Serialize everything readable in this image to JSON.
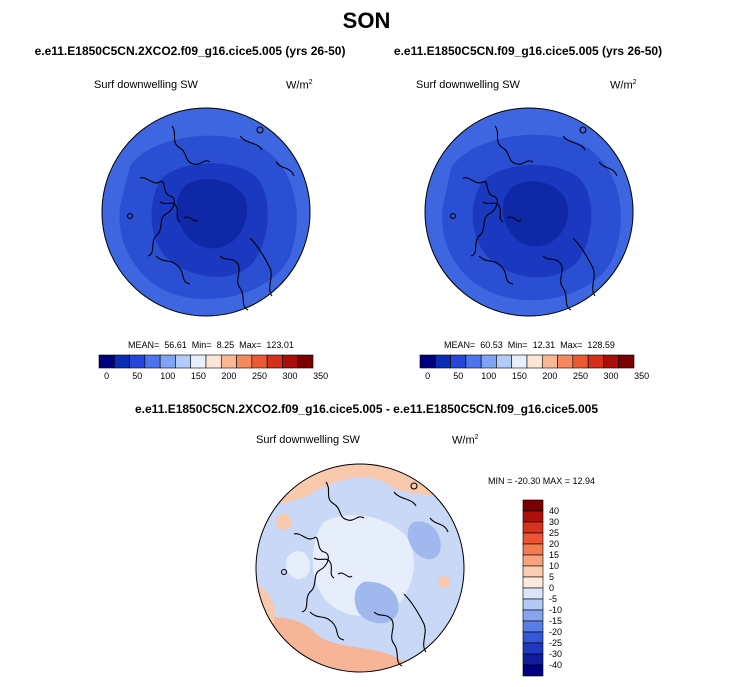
{
  "season": "SON",
  "panels": [
    {
      "case": "e.e11.E1850C5CN.2XCO2.f09_g16.cice5.005 (yrs 26-50)",
      "variable": "Surf downwelling SW",
      "units": "W/m",
      "units_sup": "2",
      "stats": {
        "mean_label": "MEAN=",
        "mean": "56.61",
        "min_label": "Min=",
        "min": "8.25",
        "max_label": "Max=",
        "max": "123.01"
      }
    },
    {
      "case": "e.e11.E1850C5CN.f09_g16.cice5.005 (yrs 26-50)",
      "variable": "Surf downwelling SW",
      "units": "W/m",
      "units_sup": "2",
      "stats": {
        "mean_label": "MEAN=",
        "mean": "60.53",
        "min_label": "Min=",
        "min": "12.31",
        "max_label": "Max=",
        "max": "128.59"
      }
    }
  ],
  "diff_panel": {
    "title": "e.e11.E1850C5CN.2XCO2.f09_g16.cice5.005 - e.e11.E1850C5CN.f09_g16.cice5.005",
    "variable": "Surf downwelling SW",
    "units": "W/m",
    "units_sup": "2",
    "stats": "MIN = -20.30 MAX =  12.94"
  },
  "abs_colorbar": {
    "colors": [
      "#00007f",
      "#0b2bb3",
      "#2546d9",
      "#4d74ec",
      "#80a3f5",
      "#b2ccfa",
      "#e8eefc",
      "#fde6d6",
      "#fbb794",
      "#f58a60",
      "#eb5a35",
      "#d4301c",
      "#a80f0a",
      "#7a0000"
    ],
    "labels": [
      "0",
      "50",
      "100",
      "150",
      "200",
      "250",
      "300",
      "350"
    ]
  },
  "diff_colorbar": {
    "colors": [
      "#7a0000",
      "#b0100c",
      "#d8311c",
      "#ec5433",
      "#f47b52",
      "#f8a37d",
      "#fbcdb1",
      "#fdeadd",
      "#dbe6fb",
      "#b3c9f6",
      "#86a5ef",
      "#5a7de6",
      "#3458d9",
      "#1e38c2",
      "#0f1da0",
      "#000080"
    ],
    "labels": [
      "40",
      "30",
      "25",
      "20",
      "15",
      "10",
      "5",
      "0",
      "-5",
      "-10",
      "-15",
      "-20",
      "-25",
      "-30",
      "-40"
    ]
  },
  "map_colors": {
    "abs_outer": "#3e66e0",
    "abs_mid": "#2b4fd2",
    "abs_inner": "#1a38c0",
    "abs_core": "#0f28a8",
    "diff_base": "#c8d8f6",
    "diff_light": "#e6edfb",
    "diff_cool": "#a0b8ee",
    "diff_warm": "#f9c9ad",
    "diff_warm2": "#f6b596",
    "coast": "#000000"
  }
}
